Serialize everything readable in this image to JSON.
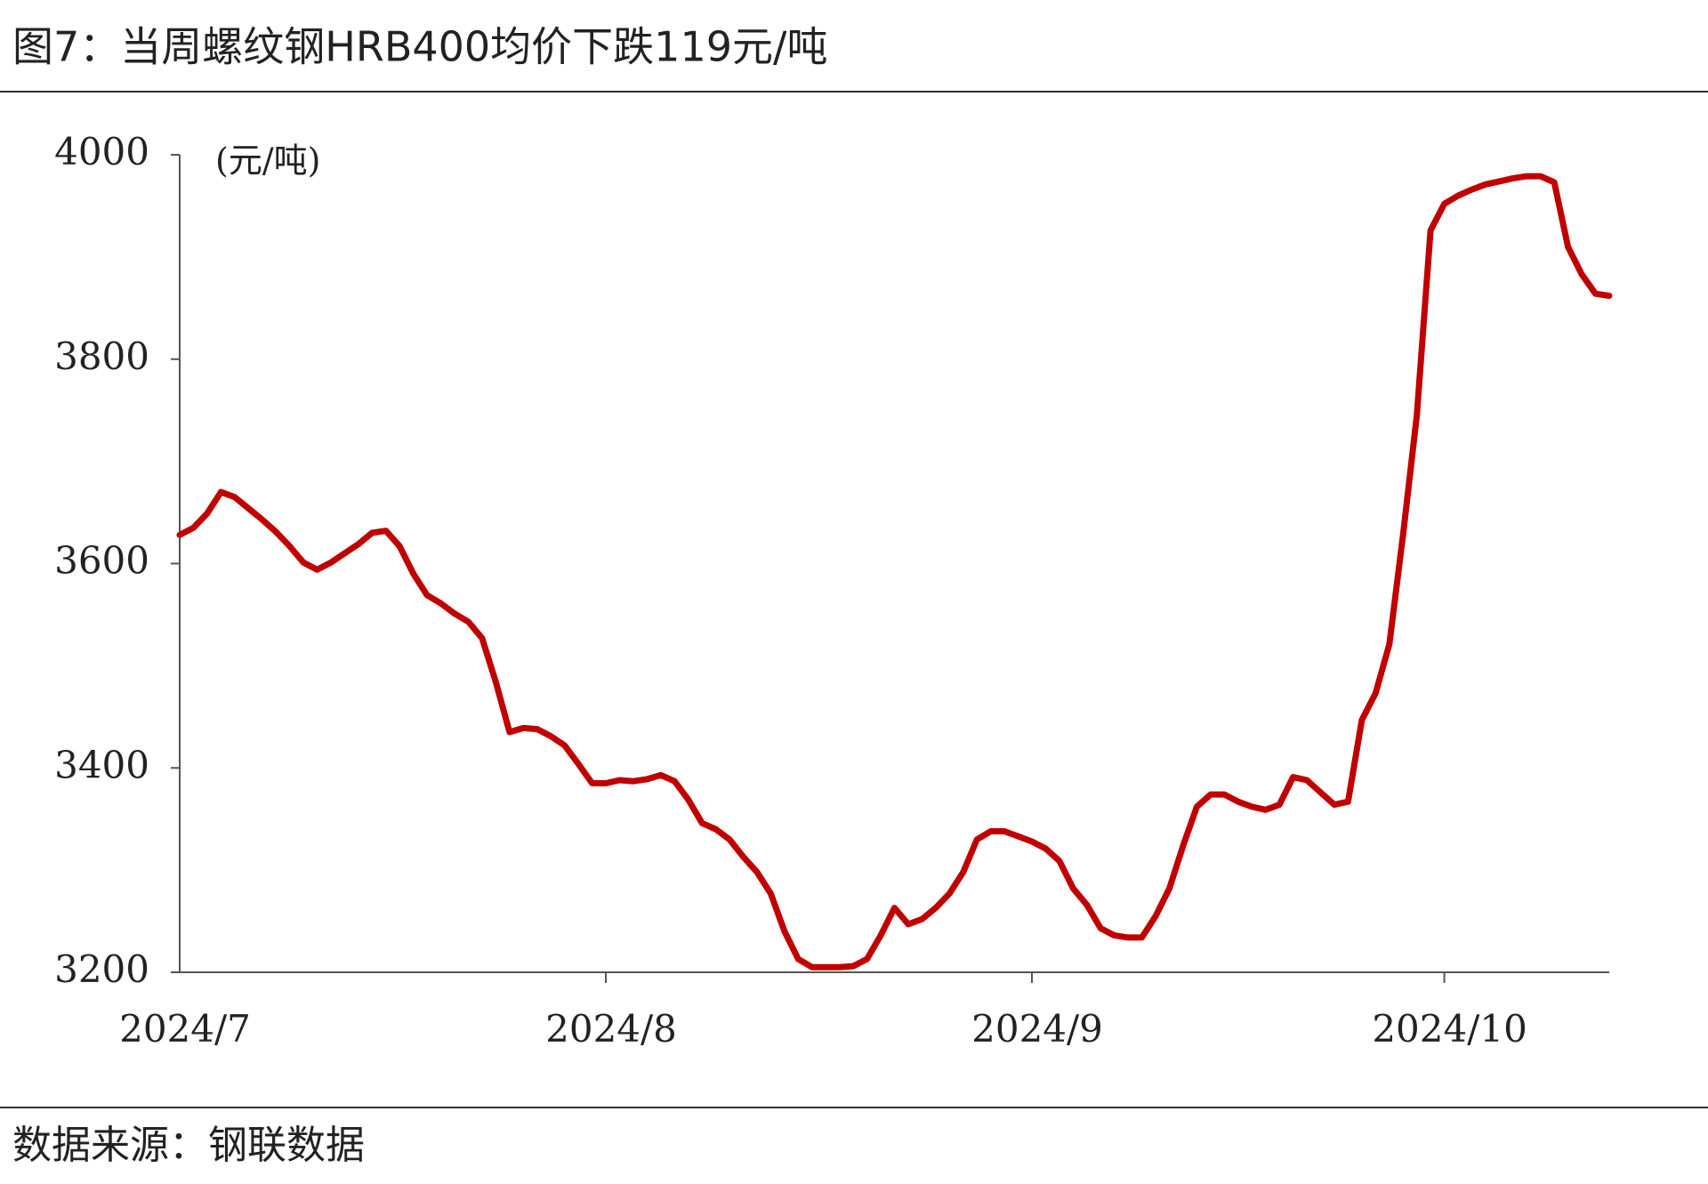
{
  "chart_data": {
    "type": "line",
    "title": "图7：当周螺纹钢HRB400均价下跌119元/吨",
    "y_unit_label": "(元/吨)",
    "source": "数据来源：钢联数据",
    "categories": [
      "2024/7",
      null,
      null,
      null,
      null,
      null,
      null,
      null,
      null,
      null,
      null,
      null,
      null,
      null,
      null,
      null,
      null,
      null,
      null,
      null,
      null,
      null,
      null,
      null,
      null,
      null,
      null,
      null,
      null,
      null,
      null,
      "2024/8",
      null,
      null,
      null,
      null,
      null,
      null,
      null,
      null,
      null,
      null,
      null,
      null,
      null,
      null,
      null,
      null,
      null,
      null,
      null,
      null,
      null,
      null,
      null,
      null,
      null,
      null,
      null,
      null,
      null,
      null,
      "2024/9",
      null,
      null,
      null,
      null,
      null,
      null,
      null,
      null,
      null,
      null,
      null,
      null,
      null,
      null,
      null,
      null,
      null,
      null,
      null,
      null,
      null,
      null,
      null,
      null,
      null,
      null,
      null,
      null,
      null,
      "2024/10",
      null,
      null,
      null,
      null,
      null,
      null,
      null,
      null,
      null,
      null,
      null,
      null
    ],
    "series": [
      {
        "name": "螺纹钢HRB400均价",
        "color": "#c00000",
        "values": [
          3628,
          3635,
          3649,
          3670,
          3665,
          3654,
          3643,
          3631,
          3617,
          3601,
          3594,
          3601,
          3610,
          3619,
          3630,
          3632,
          3617,
          3590,
          3569,
          3561,
          3551,
          3543,
          3527,
          3484,
          3435,
          3439,
          3438,
          3431,
          3422,
          3404,
          3385,
          3385,
          3388,
          3387,
          3389,
          3393,
          3387,
          3369,
          3346,
          3340,
          3330,
          3313,
          3298,
          3277,
          3240,
          3213,
          3205,
          3205,
          3205,
          3206,
          3213,
          3236,
          3263,
          3247,
          3252,
          3263,
          3277,
          3298,
          3330,
          3338,
          3338,
          3333,
          3328,
          3321,
          3309,
          3282,
          3266,
          3243,
          3236,
          3234,
          3234,
          3255,
          3282,
          3324,
          3362,
          3374,
          3374,
          3367,
          3362,
          3359,
          3364,
          3391,
          3388,
          3376,
          3364,
          3367,
          3447,
          3473,
          3521,
          3628,
          3745,
          3926,
          3952,
          3960,
          3966,
          3971,
          3974,
          3977,
          3979,
          3979,
          3973,
          3910,
          3883,
          3864,
          3862
        ]
      }
    ],
    "ylim": [
      3200,
      4000
    ],
    "yticks": [
      3200,
      3400,
      3600,
      3800,
      4000
    ],
    "grid": false
  }
}
